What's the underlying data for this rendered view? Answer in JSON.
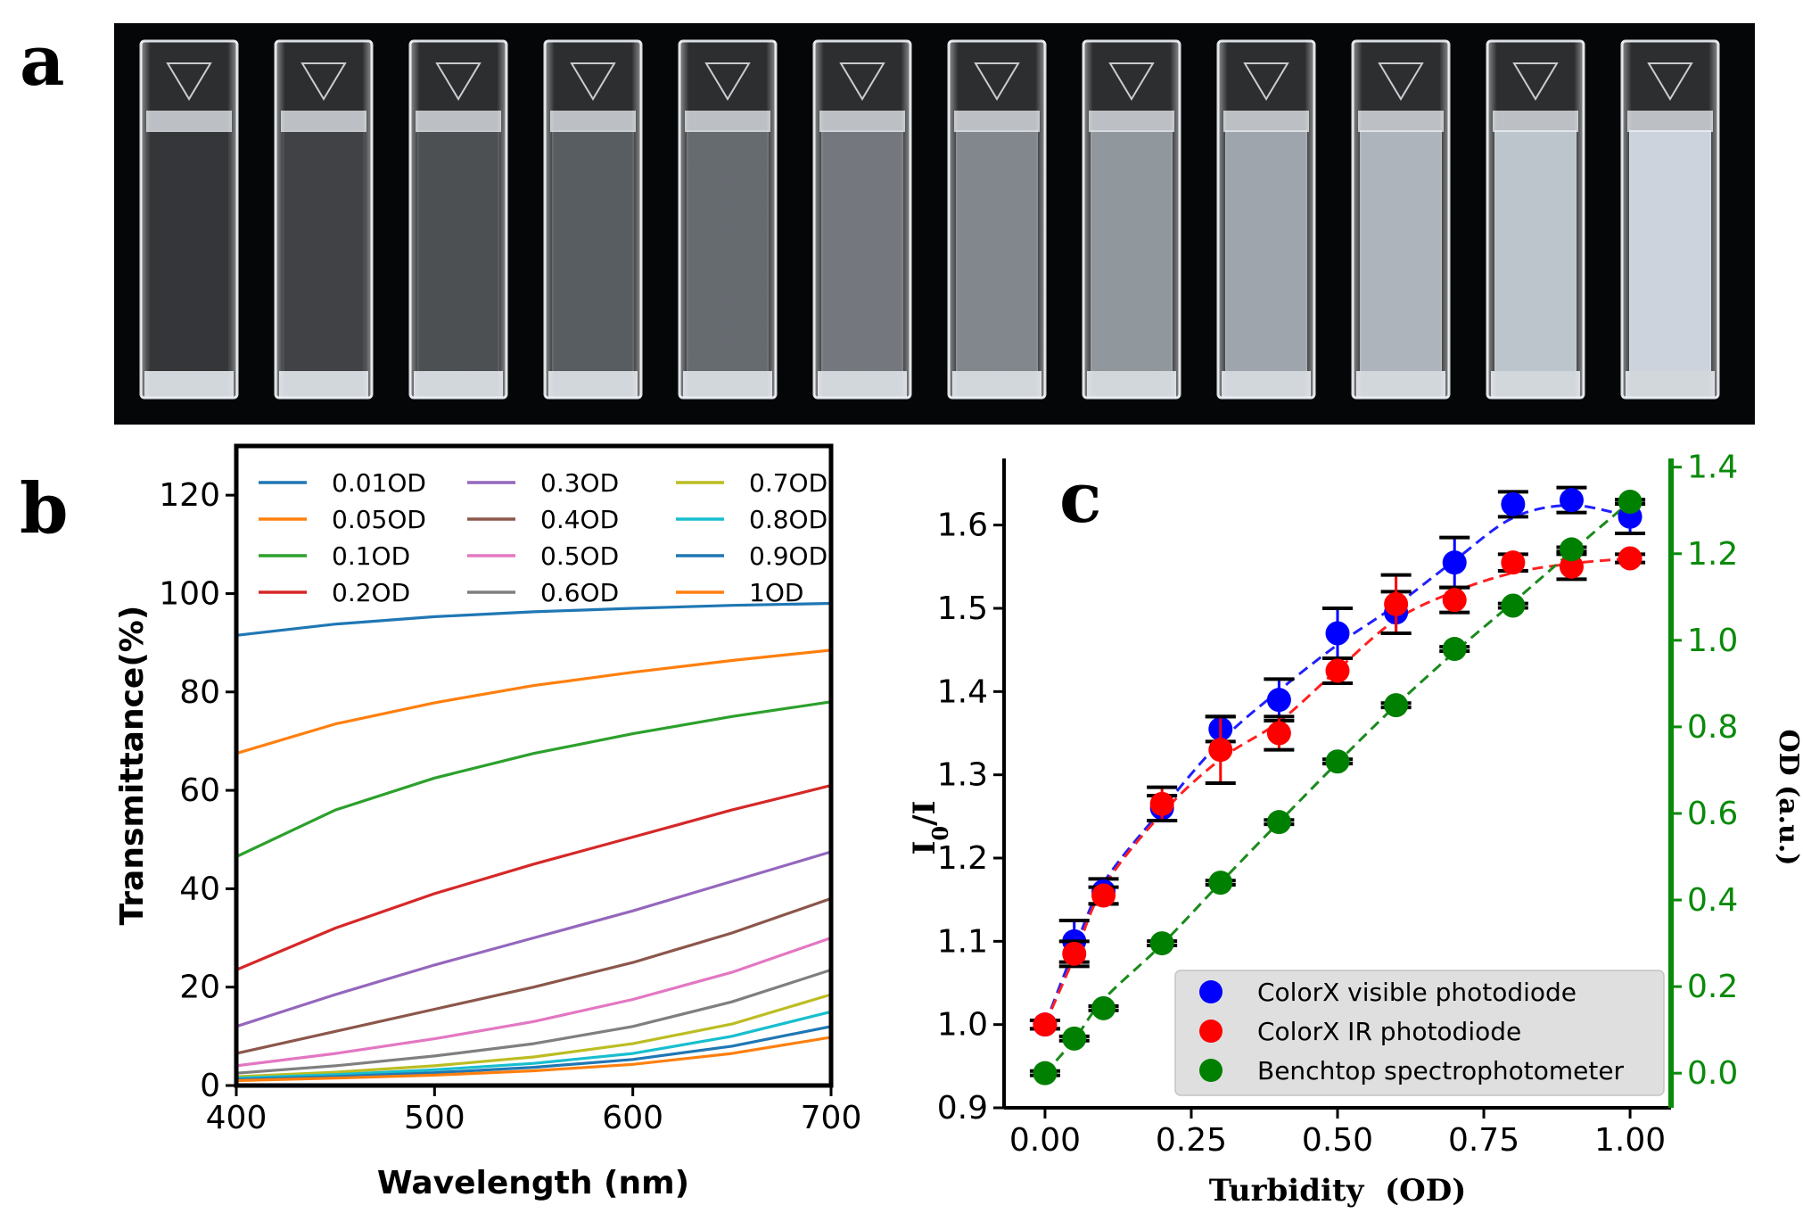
{
  "panels": {
    "a": "a",
    "b": "b",
    "c": "c"
  },
  "photo": {
    "cuvette_count": 12
  },
  "chart_data": [
    {
      "type": "line",
      "xlabel": "Wavelength (nm)",
      "ylabel": "Transmittance(%)",
      "xlim": [
        400,
        700
      ],
      "ylim": [
        0,
        130
      ],
      "xticks": [
        400,
        500,
        600,
        700
      ],
      "yticks": [
        0,
        20,
        40,
        60,
        80,
        100,
        120
      ],
      "grid": false,
      "legend_position": "top",
      "x": [
        400,
        450,
        500,
        550,
        600,
        650,
        700
      ],
      "series": [
        {
          "name": "0.01OD",
          "color": "#1f77b4",
          "values": [
            91.5,
            93.8,
            95.3,
            96.3,
            97.0,
            97.6,
            98.0
          ]
        },
        {
          "name": "0.05OD",
          "color": "#ff7f0e",
          "values": [
            67.5,
            73.5,
            77.8,
            81.3,
            84.0,
            86.4,
            88.5
          ]
        },
        {
          "name": "0.1OD",
          "color": "#2ca02c",
          "values": [
            46.5,
            56.0,
            62.5,
            67.5,
            71.5,
            75.0,
            78.0
          ]
        },
        {
          "name": "0.2OD",
          "color": "#d62728",
          "values": [
            23.5,
            32.0,
            39.0,
            45.0,
            50.5,
            56.0,
            61.0
          ]
        },
        {
          "name": "0.3OD",
          "color": "#9467bd",
          "values": [
            12.0,
            18.5,
            24.5,
            30.0,
            35.5,
            41.5,
            47.5
          ]
        },
        {
          "name": "0.4OD",
          "color": "#8c564b",
          "values": [
            6.5,
            11.0,
            15.5,
            20.0,
            25.0,
            31.0,
            38.0
          ]
        },
        {
          "name": "0.5OD",
          "color": "#e377c2",
          "values": [
            4.0,
            6.5,
            9.5,
            13.0,
            17.5,
            23.0,
            30.0
          ]
        },
        {
          "name": "0.6OD",
          "color": "#7f7f7f",
          "values": [
            2.5,
            4.0,
            6.0,
            8.5,
            12.0,
            17.0,
            23.5
          ]
        },
        {
          "name": "0.7OD",
          "color": "#bcbd22",
          "values": [
            1.8,
            2.7,
            4.0,
            5.8,
            8.5,
            12.5,
            18.5
          ]
        },
        {
          "name": "0.8OD",
          "color": "#17becf",
          "values": [
            1.5,
            2.2,
            3.2,
            4.5,
            6.5,
            10.0,
            15.0
          ]
        },
        {
          "name": "0.9OD",
          "color": "#1f77b4",
          "values": [
            1.2,
            1.8,
            2.6,
            3.7,
            5.3,
            8.0,
            12.0
          ]
        },
        {
          "name": "1OD",
          "color": "#ff7f0e",
          "values": [
            1.0,
            1.5,
            2.1,
            3.0,
            4.3,
            6.5,
            9.8
          ]
        }
      ]
    },
    {
      "type": "scatter",
      "xlabel": "Turbidity  (OD)",
      "ylabel": "I0/I",
      "y2label": "OD (a.u.)",
      "xlim": [
        -0.07,
        1.07
      ],
      "ylim": [
        0.9,
        1.68
      ],
      "y2lim": [
        -0.08,
        1.42
      ],
      "xticks": [
        "0.00",
        "0.25",
        "0.50",
        "0.75",
        "1.00"
      ],
      "yticks": [
        "0.9",
        "1.0",
        "1.1",
        "1.2",
        "1.3",
        "1.4",
        "1.5",
        "1.6"
      ],
      "y2ticks": [
        "0.0",
        "0.2",
        "0.4",
        "0.6",
        "0.8",
        "1.0",
        "1.2",
        "1.4"
      ],
      "legend_position": "lower right",
      "x": [
        0,
        0.05,
        0.1,
        0.2,
        0.3,
        0.4,
        0.5,
        0.6,
        0.7,
        0.8,
        0.9,
        1.0
      ],
      "series": [
        {
          "name": "ColorX visible photodiode",
          "color": "#0000ff",
          "axis": "left",
          "values": [
            1.0,
            1.1,
            1.16,
            1.26,
            1.355,
            1.39,
            1.47,
            1.495,
            1.555,
            1.625,
            1.63,
            1.61
          ],
          "errors": [
            0.005,
            0.025,
            0.015,
            0.015,
            0.015,
            0.025,
            0.03,
            0.025,
            0.03,
            0.015,
            0.015,
            0.02
          ]
        },
        {
          "name": "ColorX IR photodiode",
          "color": "#ff0000",
          "axis": "left",
          "values": [
            1.0,
            1.085,
            1.155,
            1.265,
            1.33,
            1.35,
            1.425,
            1.505,
            1.51,
            1.555,
            1.55,
            1.56
          ],
          "errors": [
            0.005,
            0.015,
            0.01,
            0.02,
            0.04,
            0.02,
            0.015,
            0.035,
            0.015,
            0.01,
            0.015,
            0.005
          ]
        },
        {
          "name": "Benchtop spectrophotometer",
          "color": "#008000",
          "axis": "right",
          "values": [
            0.0,
            0.08,
            0.15,
            0.3,
            0.44,
            0.58,
            0.72,
            0.85,
            0.98,
            1.08,
            1.21,
            1.32
          ],
          "errors": [
            0.005,
            0.005,
            0.005,
            0.005,
            0.005,
            0.005,
            0.005,
            0.005,
            0.005,
            0.005,
            0.005,
            0.005
          ]
        }
      ]
    }
  ]
}
